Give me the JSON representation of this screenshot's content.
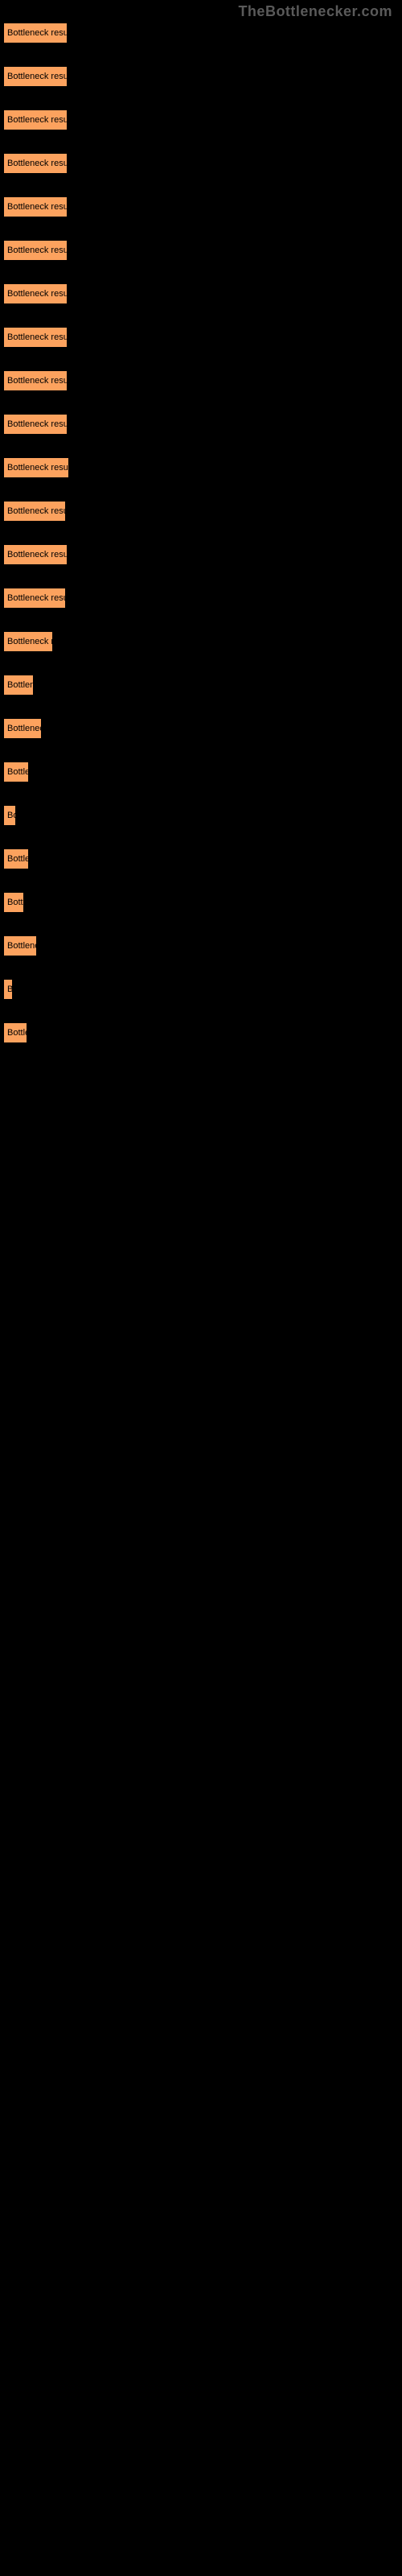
{
  "watermark": "TheBottlenecker.com",
  "link_bg_color": "#fca25e",
  "link_text_color": "#000000",
  "body_bg_color": "#000000",
  "results": [
    {
      "label": "Bottleneck result",
      "width": 80
    },
    {
      "label": "Bottleneck result",
      "width": 80
    },
    {
      "label": "Bottleneck result",
      "width": 80
    },
    {
      "label": "Bottleneck result",
      "width": 80
    },
    {
      "label": "Bottleneck result",
      "width": 80
    },
    {
      "label": "Bottleneck result",
      "width": 80
    },
    {
      "label": "Bottleneck result",
      "width": 80
    },
    {
      "label": "Bottleneck result",
      "width": 80
    },
    {
      "label": "Bottleneck result",
      "width": 80
    },
    {
      "label": "Bottleneck result",
      "width": 80
    },
    {
      "label": "Bottleneck result",
      "width": 82
    },
    {
      "label": "Bottleneck result",
      "width": 78
    },
    {
      "label": "Bottleneck result",
      "width": 80
    },
    {
      "label": "Bottleneck result",
      "width": 78
    },
    {
      "label": "Bottleneck result",
      "width": 62
    },
    {
      "label": "Bottleneck result",
      "width": 38
    },
    {
      "label": "Bottleneck result",
      "width": 48
    },
    {
      "label": "Bottleneck result",
      "width": 32
    },
    {
      "label": "Bottleneck result",
      "width": 16
    },
    {
      "label": "Bottleneck result",
      "width": 32
    },
    {
      "label": "Bottleneck result",
      "width": 26
    },
    {
      "label": "Bottleneck result",
      "width": 42
    },
    {
      "label": "Bottleneck result",
      "width": 12
    },
    {
      "label": "Bottleneck result",
      "width": 30
    }
  ]
}
